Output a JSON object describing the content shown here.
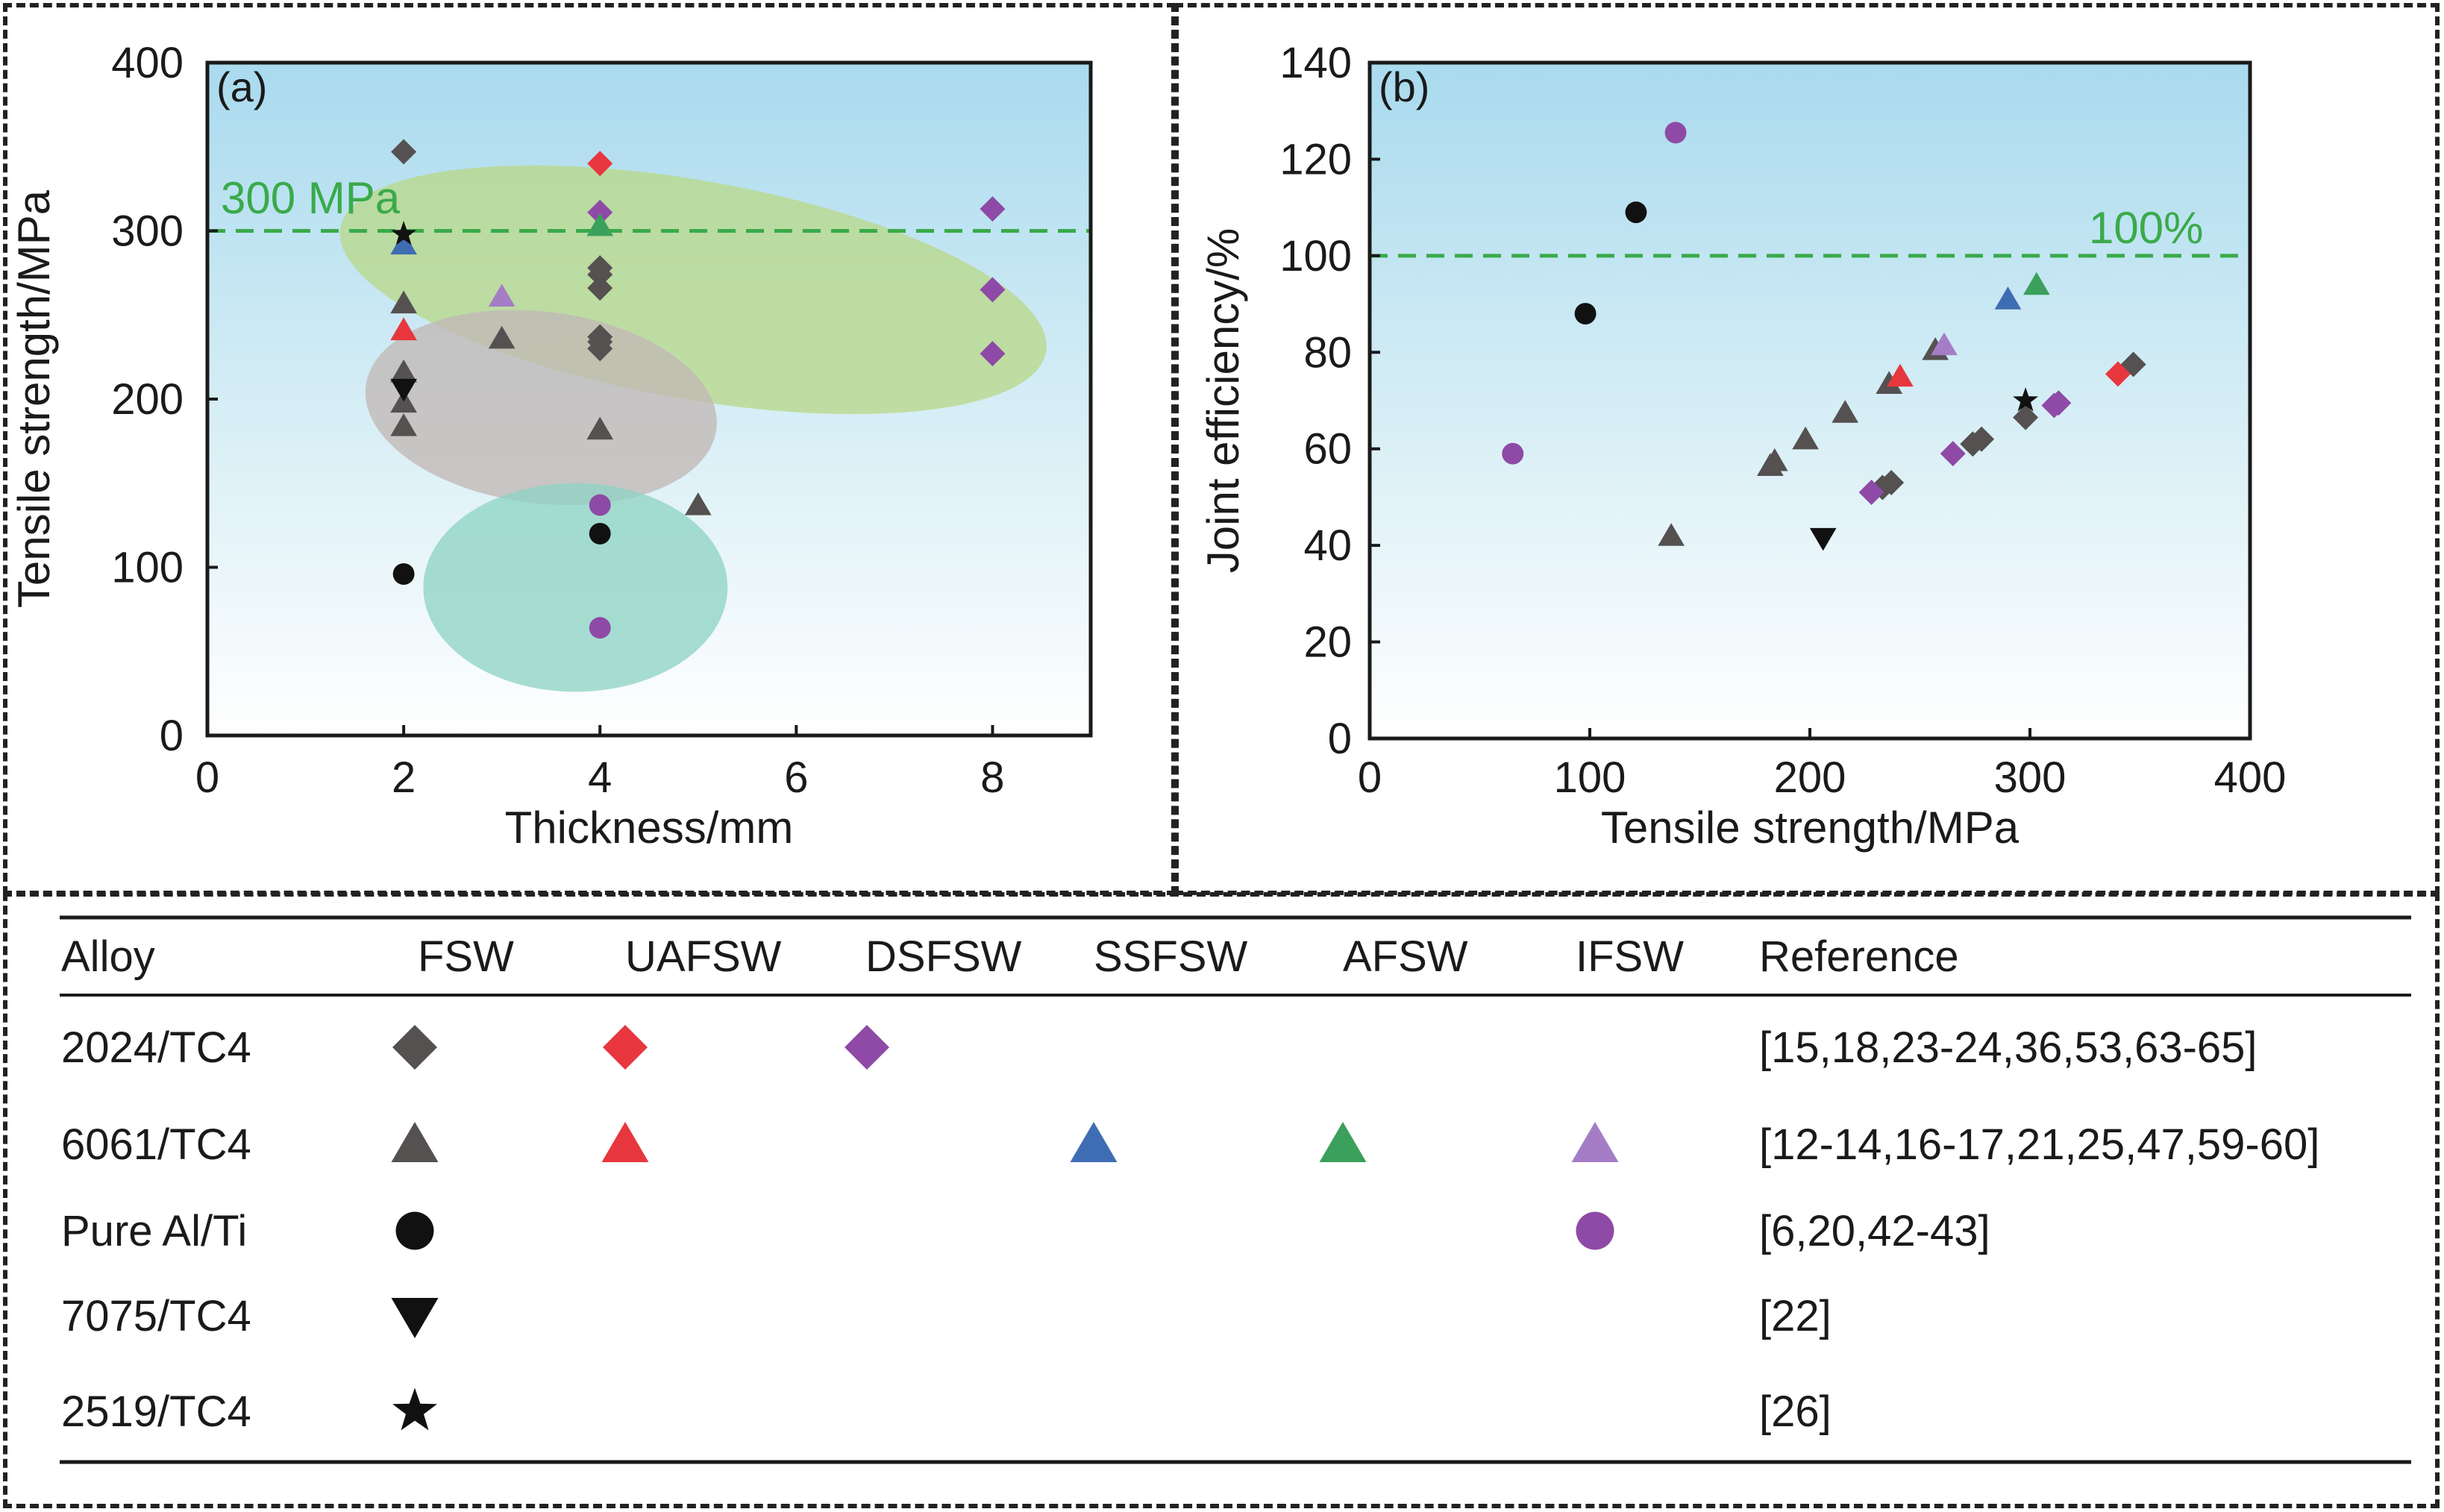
{
  "colors": {
    "fsw": "#555151",
    "uafsw": "#e8363e",
    "dsfsw": "#8e4aa6",
    "ssfsw": "#3f6db3",
    "afsw": "#3aa05b",
    "ifsw": "#a57dc6",
    "black": "#111111",
    "ref_line": "#3aaa4a",
    "blob_green": "#b9d98a",
    "blob_gray": "#c2b9b6",
    "blob_teal": "#8fd3c4"
  },
  "chart_data": [
    {
      "type": "scatter",
      "panel_label": "(a)",
      "xlabel": "Thickness/mm",
      "ylabel": "Tensile strength/MPa",
      "xlim": [
        0,
        9
      ],
      "ylim": [
        0,
        400
      ],
      "xticks": [
        "0",
        "2",
        "4",
        "6",
        "8"
      ],
      "yticks": [
        "0",
        "100",
        "200",
        "300",
        "400"
      ],
      "reference_line": {
        "y": 300,
        "label": "300 MPa"
      },
      "series": [
        {
          "key": "fsw_diamond",
          "marker": "diamond",
          "color": "fsw",
          "points": [
            [
              2,
              347
            ],
            [
              4,
              278
            ],
            [
              4,
              274
            ],
            [
              4,
              266
            ],
            [
              4,
              237
            ],
            [
              4,
              234
            ],
            [
              4,
              230
            ]
          ]
        },
        {
          "key": "uafsw_diamond",
          "marker": "diamond",
          "color": "uafsw",
          "points": [
            [
              4,
              340
            ]
          ]
        },
        {
          "key": "dsfsw_diamond",
          "marker": "diamond",
          "color": "dsfsw",
          "points": [
            [
              4,
              311
            ],
            [
              8,
              313
            ],
            [
              8,
              265
            ],
            [
              8,
              227
            ]
          ]
        },
        {
          "key": "fsw_triangle",
          "marker": "triangle",
          "color": "fsw",
          "points": [
            [
              2,
              257
            ],
            [
              2,
              216
            ],
            [
              2,
              198
            ],
            [
              2,
              184
            ],
            [
              3,
              236
            ],
            [
              4,
              182
            ],
            [
              5,
              137
            ]
          ]
        },
        {
          "key": "uafsw_triangle",
          "marker": "triangle",
          "color": "uafsw",
          "points": [
            [
              2,
              241
            ]
          ]
        },
        {
          "key": "ssfsw_triangle",
          "marker": "triangle",
          "color": "ssfsw",
          "points": [
            [
              2,
              292
            ]
          ]
        },
        {
          "key": "afsw_triangle",
          "marker": "triangle",
          "color": "afsw",
          "points": [
            [
              4,
              303
            ]
          ]
        },
        {
          "key": "ifsw_triangle",
          "marker": "triangle",
          "color": "ifsw",
          "points": [
            [
              3,
              261
            ]
          ]
        },
        {
          "key": "fsw_circle",
          "marker": "circle",
          "color": "black",
          "points": [
            [
              2,
              96
            ],
            [
              4,
              120
            ]
          ]
        },
        {
          "key": "ifsw_circle",
          "marker": "circle",
          "color": "dsfsw",
          "points": [
            [
              4,
              137
            ],
            [
              4,
              64
            ]
          ]
        },
        {
          "key": "fsw_down",
          "marker": "down-triangle",
          "color": "black",
          "points": [
            [
              2,
              206
            ]
          ]
        },
        {
          "key": "fsw_star",
          "marker": "star",
          "color": "black",
          "points": [
            [
              2,
              298
            ]
          ]
        }
      ],
      "regions": [
        {
          "color": "blob_green",
          "cx": 4.95,
          "cy": 265,
          "rx": 3.65,
          "ry": 65,
          "rotate": 10
        },
        {
          "color": "blob_gray",
          "cx": 3.4,
          "cy": 195,
          "rx": 1.8,
          "ry": 57,
          "rotate": 7
        },
        {
          "color": "blob_teal",
          "cx": 3.75,
          "cy": 88,
          "rx": 1.55,
          "ry": 62,
          "rotate": 0
        }
      ]
    },
    {
      "type": "scatter",
      "panel_label": "(b)",
      "xlabel": "Tensile strength/MPa",
      "ylabel": "Joint efficiency/%",
      "xlim": [
        0,
        400
      ],
      "ylim": [
        0,
        140
      ],
      "xticks": [
        "0",
        "100",
        "200",
        "300",
        "400"
      ],
      "yticks": [
        "0",
        "20",
        "40",
        "60",
        "80",
        "100",
        "120",
        "140"
      ],
      "reference_line": {
        "y": 100,
        "label": "100%"
      },
      "series": [
        {
          "key": "fsw_diamond",
          "marker": "diamond",
          "color": "fsw",
          "points": [
            [
              347,
              77.5
            ],
            [
              298,
              66.5
            ],
            [
              278,
              62
            ],
            [
              274,
              61
            ],
            [
              237,
              53
            ],
            [
              233,
              52
            ]
          ]
        },
        {
          "key": "uafsw_diamond",
          "marker": "diamond",
          "color": "uafsw",
          "points": [
            [
              340,
              75.5
            ]
          ]
        },
        {
          "key": "dsfsw_diamond",
          "marker": "diamond",
          "color": "dsfsw",
          "points": [
            [
              313,
              69.5
            ],
            [
              311,
              69
            ],
            [
              265,
              59
            ],
            [
              228,
              51
            ]
          ]
        },
        {
          "key": "fsw_triangle",
          "marker": "triangle",
          "color": "fsw",
          "points": [
            [
              137,
              42
            ],
            [
              182,
              56.5
            ],
            [
              184,
              57.5
            ],
            [
              198,
              62
            ],
            [
              216,
              67.5
            ],
            [
              236,
              73.5
            ],
            [
              257,
              80.5
            ]
          ]
        },
        {
          "key": "uafsw_triangle",
          "marker": "triangle",
          "color": "uafsw",
          "points": [
            [
              241,
              75
            ]
          ]
        },
        {
          "key": "ssfsw_triangle",
          "marker": "triangle",
          "color": "ssfsw",
          "points": [
            [
              290,
              91
            ]
          ]
        },
        {
          "key": "afsw_triangle",
          "marker": "triangle",
          "color": "afsw",
          "points": [
            [
              303,
              94
            ]
          ]
        },
        {
          "key": "ifsw_triangle",
          "marker": "triangle",
          "color": "ifsw",
          "points": [
            [
              261,
              81.5
            ]
          ]
        },
        {
          "key": "fsw_circle",
          "marker": "circle",
          "color": "black",
          "points": [
            [
              98,
              88
            ],
            [
              121,
              109
            ]
          ]
        },
        {
          "key": "ifsw_circle",
          "marker": "circle",
          "color": "dsfsw",
          "points": [
            [
              65,
              59
            ],
            [
              139,
              125.5
            ]
          ]
        },
        {
          "key": "fsw_down",
          "marker": "down-triangle",
          "color": "black",
          "points": [
            [
              206,
              41.5
            ]
          ]
        },
        {
          "key": "fsw_star",
          "marker": "star",
          "color": "black",
          "points": [
            [
              298,
              70
            ]
          ]
        }
      ]
    }
  ],
  "legend_table": {
    "headers": [
      "Alloy",
      "FSW",
      "UAFSW",
      "DSFSW",
      "SSFSW",
      "AFSW",
      "IFSW",
      "Reference"
    ],
    "rows": [
      {
        "alloy": "2024/TC4",
        "reference": "[15,18,23-24,36,53,63-65]",
        "markers": [
          {
            "col": 1,
            "marker": "diamond",
            "color": "fsw"
          },
          {
            "col": 2,
            "marker": "diamond",
            "color": "uafsw"
          },
          {
            "col": 3,
            "marker": "diamond",
            "color": "dsfsw"
          }
        ]
      },
      {
        "alloy": "6061/TC4",
        "reference": "[12-14,16-17,21,25,47,59-60]",
        "markers": [
          {
            "col": 1,
            "marker": "triangle",
            "color": "fsw"
          },
          {
            "col": 2,
            "marker": "triangle",
            "color": "uafsw"
          },
          {
            "col": 4,
            "marker": "triangle",
            "color": "ssfsw"
          },
          {
            "col": 5,
            "marker": "triangle",
            "color": "afsw"
          },
          {
            "col": 6,
            "marker": "triangle",
            "color": "ifsw"
          }
        ]
      },
      {
        "alloy": "Pure Al/Ti",
        "reference": "[6,20,42-43]",
        "markers": [
          {
            "col": 1,
            "marker": "circle",
            "color": "black"
          },
          {
            "col": 6,
            "marker": "circle",
            "color": "dsfsw"
          }
        ]
      },
      {
        "alloy": "7075/TC4",
        "reference": "[22]",
        "markers": [
          {
            "col": 1,
            "marker": "down-triangle",
            "color": "black"
          }
        ]
      },
      {
        "alloy": "2519/TC4",
        "reference": "[26]",
        "markers": [
          {
            "col": 1,
            "marker": "star",
            "color": "black"
          }
        ]
      }
    ]
  }
}
